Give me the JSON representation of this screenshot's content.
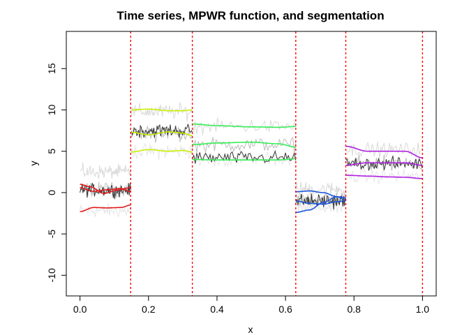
{
  "chart_data": {
    "type": "line",
    "title": "Time series, MPWR function, and segmentation",
    "xlabel": "x",
    "ylabel": "y",
    "xlim": [
      -0.04,
      1.04
    ],
    "ylim": [
      -12.5,
      19.5
    ],
    "x_ticks": [
      0.0,
      0.2,
      0.4,
      0.6,
      0.8,
      1.0
    ],
    "x_tick_labels": [
      "0.0",
      "0.2",
      "0.4",
      "0.6",
      "0.8",
      "1.0"
    ],
    "y_ticks": [
      -10,
      -5,
      0,
      5,
      10,
      15
    ],
    "y_tick_labels": [
      "-10",
      "-5",
      "0",
      "5",
      "10",
      "15"
    ],
    "grid": false,
    "legend": "none",
    "changepoints": [
      0.148,
      0.328,
      0.63,
      0.776,
      1.0
    ],
    "changepoint_color": "#ff0000",
    "segments": [
      {
        "range": [
          0.0,
          0.148
        ],
        "color": "#e31a1c",
        "noise_levels": [
          -2.2,
          0.4,
          2.5
        ],
        "dark_level": 0.3,
        "noise_amp": 1.2,
        "mean_curve": [
          [
            0.0,
            0.6
          ],
          [
            0.04,
            0.15
          ],
          [
            0.08,
            0.35
          ],
          [
            0.12,
            0.5
          ],
          [
            0.148,
            0.1
          ]
        ],
        "upper_curve": [
          [
            0.0,
            1.0
          ],
          [
            0.03,
            0.7
          ],
          [
            0.07,
            -0.1
          ],
          [
            0.11,
            0.3
          ],
          [
            0.148,
            0.6
          ]
        ],
        "lower_curve": [
          [
            0.0,
            -2.3
          ],
          [
            0.04,
            -1.8
          ],
          [
            0.08,
            -1.85
          ],
          [
            0.12,
            -1.8
          ],
          [
            0.148,
            -1.5
          ]
        ]
      },
      {
        "range": [
          0.148,
          0.328
        ],
        "color": "#c8f000",
        "noise_levels": [
          5.0,
          7.2,
          9.8
        ],
        "dark_level": 7.5,
        "noise_amp": 1.3,
        "mean_curve": [
          [
            0.148,
            7.3
          ],
          [
            0.2,
            7.0
          ],
          [
            0.26,
            7.35
          ],
          [
            0.3,
            7.2
          ],
          [
            0.328,
            6.9
          ]
        ],
        "upper_curve": [
          [
            0.148,
            10.0
          ],
          [
            0.2,
            10.1
          ],
          [
            0.26,
            9.9
          ],
          [
            0.3,
            9.9
          ],
          [
            0.328,
            10.0
          ]
        ],
        "lower_curve": [
          [
            0.148,
            4.9
          ],
          [
            0.2,
            5.2
          ],
          [
            0.26,
            5.0
          ],
          [
            0.3,
            5.1
          ],
          [
            0.328,
            4.9
          ]
        ]
      },
      {
        "range": [
          0.328,
          0.63
        ],
        "color": "#33ee55",
        "noise_levels": [
          4.0,
          5.8,
          8.0
        ],
        "dark_level": 4.2,
        "noise_amp": 1.2,
        "mean_curve": [
          [
            0.328,
            5.8
          ],
          [
            0.4,
            6.0
          ],
          [
            0.5,
            6.1
          ],
          [
            0.58,
            5.9
          ],
          [
            0.63,
            5.5
          ]
        ],
        "upper_curve": [
          [
            0.328,
            8.3
          ],
          [
            0.4,
            8.1
          ],
          [
            0.5,
            7.95
          ],
          [
            0.58,
            7.9
          ],
          [
            0.63,
            8.0
          ]
        ],
        "lower_curve": [
          [
            0.328,
            4.0
          ],
          [
            0.4,
            3.95
          ],
          [
            0.5,
            3.95
          ],
          [
            0.58,
            3.95
          ],
          [
            0.63,
            4.1
          ]
        ]
      },
      {
        "range": [
          0.63,
          0.776
        ],
        "color": "#1a55dd",
        "noise_levels": [
          -1.8,
          -0.8,
          0.4
        ],
        "dark_level": -1.0,
        "noise_amp": 1.3,
        "mean_curve": [
          [
            0.63,
            -1.0
          ],
          [
            0.67,
            -1.3
          ],
          [
            0.71,
            -1.4
          ],
          [
            0.75,
            -1.1
          ],
          [
            0.776,
            -1.0
          ]
        ],
        "upper_curve": [
          [
            0.63,
            0.1
          ],
          [
            0.67,
            0.2
          ],
          [
            0.71,
            0.0
          ],
          [
            0.75,
            -0.5
          ],
          [
            0.776,
            -0.9
          ]
        ],
        "lower_curve": [
          [
            0.63,
            -2.4
          ],
          [
            0.67,
            -2.1
          ],
          [
            0.71,
            -1.2
          ],
          [
            0.75,
            -0.5
          ],
          [
            0.776,
            -0.6
          ]
        ]
      },
      {
        "range": [
          0.776,
          1.0
        ],
        "color": "#b020e0",
        "noise_levels": [
          2.0,
          3.6,
          5.2
        ],
        "dark_level": 3.5,
        "noise_amp": 1.2,
        "mean_curve": [
          [
            0.776,
            3.3
          ],
          [
            0.84,
            3.6
          ],
          [
            0.9,
            3.6
          ],
          [
            0.95,
            3.6
          ],
          [
            1.0,
            3.3
          ]
        ],
        "upper_curve": [
          [
            0.776,
            5.6
          ],
          [
            0.84,
            5.0
          ],
          [
            0.9,
            5.0
          ],
          [
            0.95,
            5.0
          ],
          [
            1.0,
            4.2
          ]
        ],
        "lower_curve": [
          [
            0.776,
            2.1
          ],
          [
            0.84,
            2.0
          ],
          [
            0.9,
            1.9
          ],
          [
            0.95,
            1.85
          ],
          [
            1.0,
            1.7
          ]
        ]
      }
    ]
  }
}
